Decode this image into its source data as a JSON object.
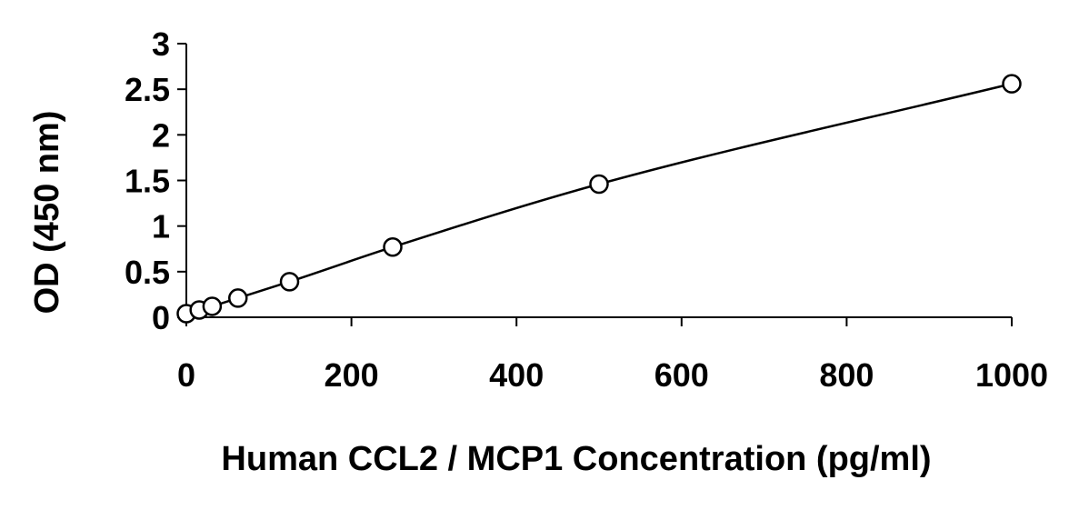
{
  "chart_data": {
    "type": "scatter",
    "title": "",
    "xlabel": "Human CCL2 / MCP1 Concentration (pg/ml)",
    "ylabel": "OD (450 nm)",
    "xlim": [
      0,
      1000
    ],
    "ylim": [
      0,
      3
    ],
    "x_ticks": [
      "0",
      "200",
      "400",
      "600",
      "800",
      "1000"
    ],
    "y_ticks": [
      "0",
      "0.5",
      "1",
      "1.5",
      "2",
      "2.5",
      "3"
    ],
    "x_tick_values": [
      0,
      200,
      400,
      600,
      800,
      1000
    ],
    "y_tick_values": [
      0,
      0.5,
      1,
      1.5,
      2,
      2.5,
      3
    ],
    "grid": false,
    "legend": "none",
    "series": [
      {
        "marker": "open-circle",
        "line": "smooth-fit",
        "color": "#000000",
        "x": [
          0,
          15.6,
          31.25,
          62.5,
          125,
          250,
          500,
          1000
        ],
        "y": [
          0.04,
          0.08,
          0.12,
          0.21,
          0.39,
          0.77,
          1.46,
          2.56
        ]
      }
    ]
  }
}
